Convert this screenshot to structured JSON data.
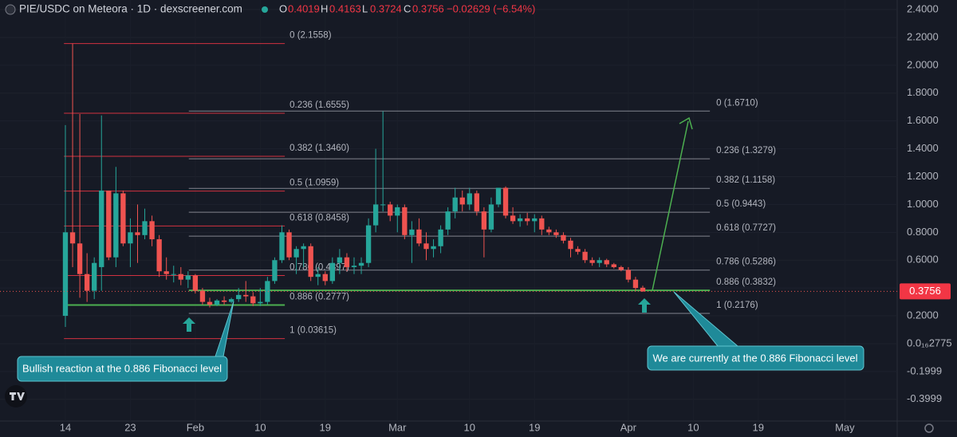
{
  "chart_data": {
    "type": "candlestick",
    "title": "PIE/USDC on Meteora · 1D · dexscreener.com",
    "legend_ohlc": [
      {
        "key": "O",
        "value": 0.4019
      },
      {
        "key": "H",
        "value": 0.4163
      },
      {
        "key": "L",
        "value": 0.3724
      },
      {
        "key": "C",
        "value": 0.3756
      }
    ],
    "change": {
      "value": -0.02629,
      "label": "−0.02629 (−6.54%)"
    },
    "up_color": "#26a69a",
    "down_color": "#ef5350",
    "x": [
      0,
      1,
      2,
      3,
      4,
      5,
      6,
      7,
      8,
      9,
      10,
      11,
      12,
      13,
      14,
      15,
      16,
      17,
      18,
      19,
      20,
      21,
      22,
      23,
      24,
      25,
      26,
      27,
      28,
      29,
      30,
      31,
      32,
      33,
      34,
      35,
      36,
      37,
      38,
      39,
      40,
      41,
      42,
      43,
      44,
      45,
      46,
      47,
      48,
      49,
      50,
      51,
      52,
      53,
      54,
      55,
      56,
      57,
      58,
      59,
      60,
      61,
      62,
      63,
      64,
      65,
      66,
      67,
      68,
      69,
      70,
      71,
      72,
      73,
      74,
      75,
      76,
      77,
      78,
      79,
      80
    ],
    "open": [
      0.2,
      0.8,
      0.72,
      0.5,
      0.38,
      0.55,
      1.1,
      0.62,
      1.08,
      0.72,
      0.8,
      0.78,
      0.88,
      0.75,
      0.52,
      0.5,
      0.5,
      0.46,
      0.49,
      0.38,
      0.3,
      0.28,
      0.31,
      0.3,
      0.32,
      0.35,
      0.34,
      0.29,
      0.3,
      0.45,
      0.6,
      0.8,
      0.62,
      0.68,
      0.7,
      0.48,
      0.5,
      0.45,
      0.58,
      0.62,
      0.55,
      0.56,
      0.58,
      0.85,
      1.0,
      1.0,
      0.92,
      0.98,
      0.78,
      0.82,
      0.72,
      0.68,
      0.7,
      0.82,
      0.95,
      1.05,
      1.0,
      1.08,
      0.95,
      0.82,
      1.0,
      1.12,
      0.92,
      0.88,
      0.9,
      0.88,
      0.9,
      0.82,
      0.8,
      0.78,
      0.74,
      0.68,
      0.66,
      0.6,
      0.58,
      0.6,
      0.57,
      0.55,
      0.53,
      0.46,
      0.4019
    ],
    "high": [
      1.57,
      2.1558,
      1.65,
      0.65,
      0.62,
      1.64,
      1.1,
      1.27,
      1.1,
      0.9,
      1.0,
      0.97,
      0.92,
      0.78,
      0.62,
      0.56,
      0.55,
      0.52,
      0.5,
      0.4,
      0.33,
      0.32,
      0.34,
      0.33,
      0.4,
      0.45,
      0.37,
      0.4,
      0.48,
      0.62,
      0.85,
      0.82,
      0.7,
      0.72,
      0.72,
      0.55,
      0.52,
      0.62,
      0.68,
      0.65,
      0.62,
      0.62,
      0.9,
      1.4,
      1.67,
      1.02,
      1.0,
      1.0,
      0.88,
      0.9,
      0.8,
      0.75,
      0.85,
      0.98,
      1.12,
      1.1,
      1.12,
      1.1,
      0.98,
      1.05,
      1.12,
      1.13,
      0.98,
      0.93,
      0.94,
      0.93,
      0.92,
      0.84,
      0.82,
      0.8,
      0.76,
      0.7,
      0.68,
      0.62,
      0.62,
      0.61,
      0.58,
      0.56,
      0.55,
      0.48,
      0.4163
    ],
    "low": [
      0.12,
      0.55,
      0.33,
      0.3,
      0.32,
      0.38,
      0.6,
      0.55,
      0.7,
      0.55,
      0.58,
      0.75,
      0.7,
      0.48,
      0.46,
      0.44,
      0.42,
      0.4,
      0.36,
      0.28,
      0.26,
      0.27,
      0.28,
      0.29,
      0.3,
      0.3,
      0.27,
      0.27,
      0.28,
      0.43,
      0.58,
      0.6,
      0.5,
      0.55,
      0.45,
      0.42,
      0.42,
      0.43,
      0.5,
      0.52,
      0.5,
      0.5,
      0.55,
      0.8,
      0.95,
      0.88,
      0.8,
      0.75,
      0.58,
      0.7,
      0.6,
      0.62,
      0.65,
      0.78,
      0.9,
      0.95,
      0.96,
      0.92,
      0.62,
      0.8,
      0.98,
      0.9,
      0.86,
      0.84,
      0.85,
      0.8,
      0.78,
      0.78,
      0.76,
      0.72,
      0.62,
      0.64,
      0.58,
      0.56,
      0.55,
      0.55,
      0.54,
      0.52,
      0.44,
      0.38,
      0.3724
    ],
    "close": [
      0.8,
      0.72,
      0.5,
      0.38,
      0.58,
      1.1,
      0.62,
      1.08,
      0.72,
      0.8,
      0.78,
      0.88,
      0.75,
      0.52,
      0.5,
      0.5,
      0.46,
      0.49,
      0.38,
      0.3,
      0.28,
      0.31,
      0.3,
      0.32,
      0.35,
      0.34,
      0.29,
      0.3,
      0.45,
      0.6,
      0.8,
      0.62,
      0.68,
      0.7,
      0.48,
      0.5,
      0.45,
      0.58,
      0.62,
      0.55,
      0.56,
      0.58,
      0.85,
      1.0,
      1.0,
      0.92,
      0.98,
      0.78,
      0.82,
      0.72,
      0.68,
      0.7,
      0.82,
      0.95,
      1.05,
      1.0,
      1.08,
      0.95,
      0.82,
      1.0,
      1.12,
      0.92,
      0.88,
      0.9,
      0.88,
      0.9,
      0.82,
      0.8,
      0.78,
      0.74,
      0.68,
      0.66,
      0.6,
      0.58,
      0.6,
      0.57,
      0.55,
      0.53,
      0.46,
      0.4,
      0.3756
    ],
    "xlim": [
      -9.06,
      115.25
    ],
    "ylim": [
      -0.556,
      2.469
    ],
    "xticks": [
      {
        "value": 0,
        "label": "14"
      },
      {
        "value": 9,
        "label": "23"
      },
      {
        "value": 18,
        "label": "Feb"
      },
      {
        "value": 27,
        "label": "10"
      },
      {
        "value": 36,
        "label": "19"
      },
      {
        "value": 46,
        "label": "Mar"
      },
      {
        "value": 56,
        "label": "10"
      },
      {
        "value": 65,
        "label": "19"
      },
      {
        "value": 78,
        "label": "Apr"
      },
      {
        "value": 87,
        "label": "10"
      },
      {
        "value": 96,
        "label": "19"
      },
      {
        "value": 108,
        "label": "May"
      }
    ],
    "yticks": [
      {
        "value": 2.4,
        "label": "2.4000"
      },
      {
        "value": 2.2,
        "label": "2.2000"
      },
      {
        "value": 2.0,
        "label": "2.0000"
      },
      {
        "value": 1.8,
        "label": "1.8000"
      },
      {
        "value": 1.6,
        "label": "1.6000"
      },
      {
        "value": 1.4,
        "label": "1.4000"
      },
      {
        "value": 1.2,
        "label": "1.2000"
      },
      {
        "value": 1.0,
        "label": "1.0000"
      },
      {
        "value": 0.8,
        "label": "0.8000"
      },
      {
        "value": 0.6,
        "label": "0.6000"
      },
      {
        "value": 0.4,
        "label": "0.4000"
      },
      {
        "value": 0.2,
        "label": "0.2000"
      },
      {
        "value": 2.775e-18,
        "label": "0.0₁₆2775"
      },
      -0.1999,
      -0.3999
    ],
    "grid": true,
    "fibs": [
      {
        "x_start": -0.2,
        "x_end": 30.4,
        "color": "#f23645",
        "levels": [
          {
            "value": 2.1558,
            "label": "0 (2.1558)"
          },
          {
            "value": 1.6555,
            "label": "0.236 (1.6555)"
          },
          {
            "value": 1.346,
            "label": "0.382 (1.3460)"
          },
          {
            "value": 1.0959,
            "label": "0.5 (1.0959)"
          },
          {
            "value": 0.8458,
            "label": "0.618 (0.8458)"
          },
          {
            "value": 0.4897,
            "label": "0.786 (0.4897)"
          },
          {
            "value": 0.2777,
            "label": "0.886 (0.2777)",
            "color": "#4caf50"
          },
          {
            "value": 0.03615,
            "label": "1 (0.03615)"
          }
        ]
      },
      {
        "x_start": 17.1,
        "x_end": 89.3,
        "color": "#9598a1",
        "levels": [
          {
            "value": 1.671,
            "label": "0 (1.6710)"
          },
          {
            "value": 1.3279,
            "label": "0.236 (1.3279)"
          },
          {
            "value": 1.1158,
            "label": "0.382 (1.1158)"
          },
          {
            "value": 0.9443,
            "label": "0.5 (0.9443)"
          },
          {
            "value": 0.7727,
            "label": "0.618 (0.7727)"
          },
          {
            "value": 0.5286,
            "label": "0.786 (0.5286)"
          },
          {
            "value": 0.3832,
            "label": "0.886 (0.3832)",
            "color": "#4caf50"
          },
          {
            "value": 0.2176,
            "label": "1 (0.2176)"
          }
        ]
      }
    ],
    "annotations": [
      {
        "text": "Bullish reaction at the 0.886 Fibonacci level"
      },
      {
        "text": "We are currently at the 0.886 Fibonacci level"
      }
    ]
  }
}
